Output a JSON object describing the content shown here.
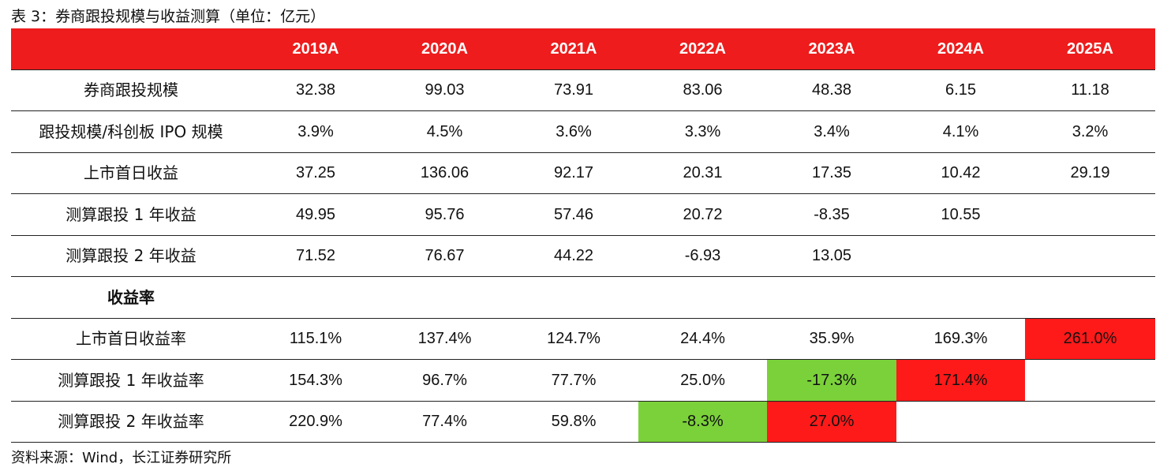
{
  "caption": "表 3：券商跟投规模与收益测算（单位：亿元）",
  "columns": [
    "2019A",
    "2020A",
    "2021A",
    "2022A",
    "2023A",
    "2024A",
    "2025A"
  ],
  "rows": [
    {
      "label": "券商跟投规模",
      "cells": [
        "32.38",
        "99.03",
        "73.91",
        "83.06",
        "48.38",
        "6.15",
        "11.18"
      ]
    },
    {
      "label": "跟投规模/科创板 IPO 规模",
      "cells": [
        "3.9%",
        "4.5%",
        "3.6%",
        "3.3%",
        "3.4%",
        "4.1%",
        "3.2%"
      ]
    },
    {
      "label": "上市首日收益",
      "cells": [
        "37.25",
        "136.06",
        "92.17",
        "20.31",
        "17.35",
        "10.42",
        "29.19"
      ]
    },
    {
      "label": "测算跟投 1 年收益",
      "cells": [
        "49.95",
        "95.76",
        "57.46",
        "20.72",
        "-8.35",
        "10.55",
        ""
      ]
    },
    {
      "label": "测算跟投 2 年收益",
      "cells": [
        "71.52",
        "76.67",
        "44.22",
        "-6.93",
        "13.05",
        "",
        ""
      ]
    },
    {
      "label": "收益率",
      "cells": [
        "",
        "",
        "",
        "",
        "",
        "",
        ""
      ]
    },
    {
      "label": "上市首日收益率",
      "cells": [
        "115.1%",
        "137.4%",
        "124.7%",
        "24.4%",
        "35.9%",
        "169.3%",
        "261.0%"
      ]
    },
    {
      "label": "测算跟投 1 年收益率",
      "cells": [
        "154.3%",
        "96.7%",
        "77.7%",
        "25.0%",
        "-17.3%",
        "171.4%",
        ""
      ]
    },
    {
      "label": "测算跟投 2 年收益率",
      "cells": [
        "220.9%",
        "77.4%",
        "59.8%",
        "-8.3%",
        "27.0%",
        "",
        ""
      ]
    }
  ],
  "highlights": [
    {
      "row": 6,
      "col": 6,
      "color": "#ff1a1a"
    },
    {
      "row": 7,
      "col": 4,
      "color": "#7bd13a"
    },
    {
      "row": 7,
      "col": 5,
      "color": "#ff1a1a"
    },
    {
      "row": 8,
      "col": 3,
      "color": "#7bd13a"
    },
    {
      "row": 8,
      "col": 4,
      "color": "#ff1a1a"
    }
  ],
  "colors": {
    "header_bg": "#ee1c1c",
    "highlight_red": "#ff1a1a",
    "highlight_green": "#7bd13a"
  },
  "source": "资料来源：Wind，长江证券研究所"
}
